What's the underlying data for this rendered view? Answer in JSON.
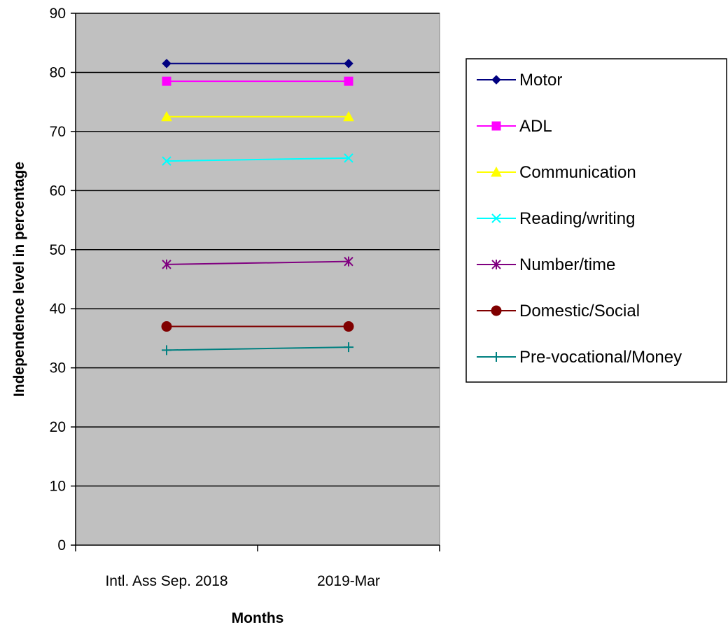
{
  "chart_data": {
    "type": "line",
    "title": "",
    "xlabel": "Months",
    "ylabel": "Independence level in percentage",
    "categories": [
      "Intl. Ass Sep. 2018",
      "2019-Mar"
    ],
    "ylim": [
      0,
      90
    ],
    "yticks": [
      0,
      10,
      20,
      30,
      40,
      50,
      60,
      70,
      80,
      90
    ],
    "grid": true,
    "legend_position": "right",
    "plot_background": "#c0c0c0",
    "series": [
      {
        "name": "Motor",
        "values": [
          81.5,
          81.5
        ],
        "color": "#000080",
        "marker": "diamond"
      },
      {
        "name": "ADL",
        "values": [
          78.5,
          78.5
        ],
        "color": "#ff00ff",
        "marker": "square"
      },
      {
        "name": "Communication",
        "values": [
          72.5,
          72.5
        ],
        "color": "#ffff00",
        "marker": "triangle"
      },
      {
        "name": "Reading/writing",
        "values": [
          65,
          65.5
        ],
        "color": "#00ffff",
        "marker": "x"
      },
      {
        "name": "Number/time",
        "values": [
          47.5,
          48
        ],
        "color": "#800080",
        "marker": "star"
      },
      {
        "name": "Domestic/Social",
        "values": [
          37,
          37
        ],
        "color": "#800000",
        "marker": "circle"
      },
      {
        "name": "Pre-vocational/Money",
        "values": [
          33,
          33.5
        ],
        "color": "#008080",
        "marker": "plus"
      }
    ]
  }
}
